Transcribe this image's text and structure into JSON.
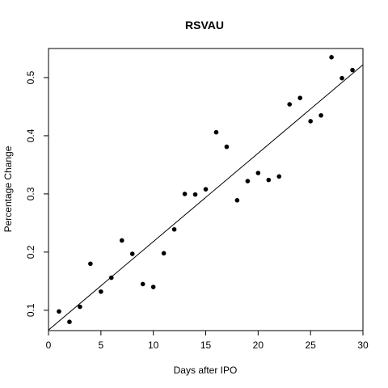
{
  "chart_data": {
    "type": "scatter",
    "title": "RSVAU",
    "xlabel": "Days after IPO",
    "ylabel": "Percentage Change",
    "xlim": [
      0,
      30
    ],
    "ylim": [
      0.065,
      0.55
    ],
    "xticks": [
      0,
      5,
      10,
      15,
      20,
      25,
      30
    ],
    "yticks": [
      0.1,
      0.2,
      0.3,
      0.4,
      0.5
    ],
    "grid": false,
    "point_color": "#000000",
    "x": [
      1,
      2,
      3,
      4,
      5,
      6,
      7,
      8,
      9,
      10,
      11,
      12,
      13,
      14,
      15,
      16,
      17,
      18,
      19,
      20,
      21,
      22,
      23,
      24,
      25,
      26,
      27,
      28,
      29
    ],
    "y": [
      0.098,
      0.08,
      0.106,
      0.18,
      0.132,
      0.156,
      0.22,
      0.197,
      0.145,
      0.14,
      0.198,
      0.239,
      0.3,
      0.299,
      0.308,
      0.406,
      0.381,
      0.289,
      0.322,
      0.336,
      0.324,
      0.33,
      0.454,
      0.465,
      0.425,
      0.435,
      0.535,
      0.499,
      0.513
    ],
    "fit_line": {
      "intercept": 0.066,
      "slope": 0.0152
    }
  }
}
